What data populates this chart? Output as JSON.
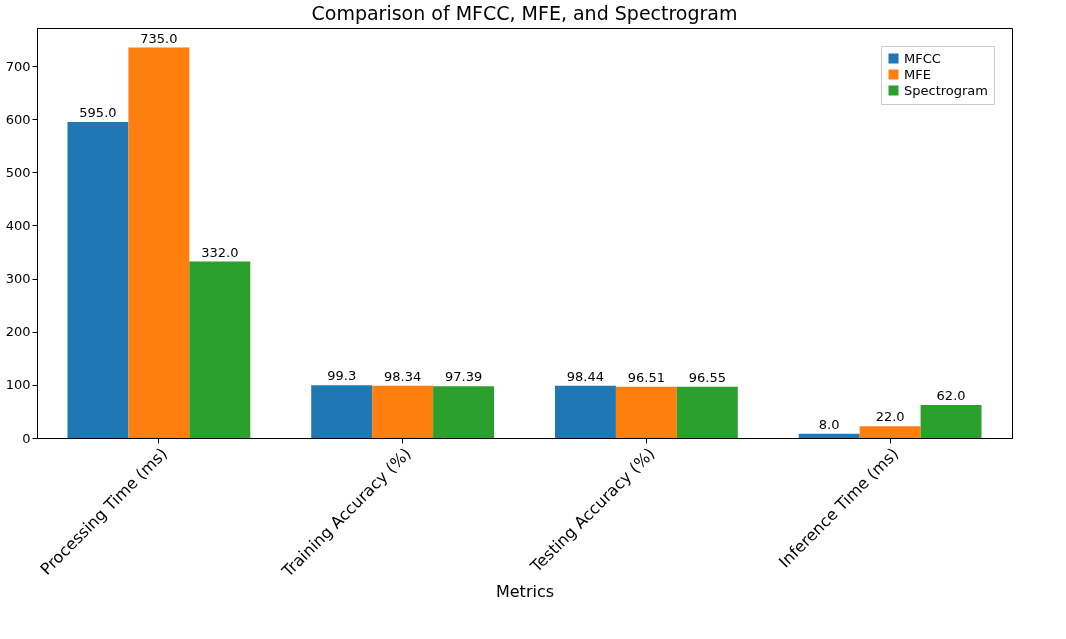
{
  "chart_data": {
    "type": "bar",
    "title": "Comparison of MFCC, MFE, and Spectrogram",
    "xlabel": "Metrics",
    "categories": [
      "Processing Time (ms)",
      "Training Accuracy (%)",
      "Testing Accuracy (%)",
      "Inference Time (ms)"
    ],
    "series": [
      {
        "name": "MFCC",
        "color": "#1f77b4",
        "values": [
          595.0,
          99.3,
          98.44,
          8.0
        ],
        "value_labels": [
          "595.0",
          "99.3",
          "98.44",
          "8.0"
        ]
      },
      {
        "name": "MFE",
        "color": "#ff7f0e",
        "values": [
          735.0,
          98.34,
          96.51,
          22.0
        ],
        "value_labels": [
          "735.0",
          "98.34",
          "96.51",
          "22.0"
        ]
      },
      {
        "name": "Spectrogram",
        "color": "#2ca02c",
        "values": [
          332.0,
          97.39,
          96.55,
          62.0
        ],
        "value_labels": [
          "332.0",
          "97.39",
          "96.55",
          "62.0"
        ]
      }
    ],
    "ylim": [
      0,
      771.75
    ],
    "yticks": [
      0,
      100,
      200,
      300,
      400,
      500,
      600,
      700
    ],
    "grid": false,
    "legend": "top right"
  }
}
